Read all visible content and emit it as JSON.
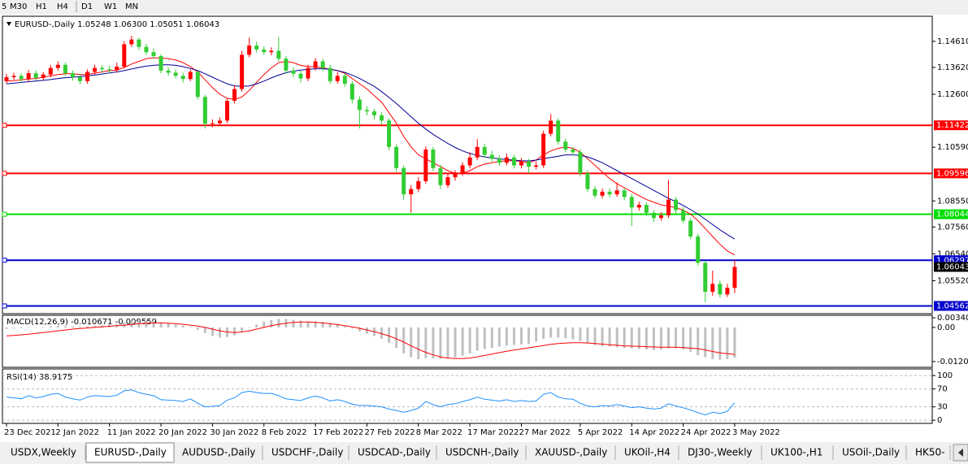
{
  "toolbar": [
    "5",
    "M30",
    "H1",
    "H4",
    "D1",
    "W1",
    "MN"
  ],
  "tabs": [
    "USDX,Weekly",
    "EURUSD-,Daily",
    "AUDUSD-,Daily",
    "USDCHF-,Daily",
    "USDCAD-,Daily",
    "USDCNH-,Daily",
    "XAUUSD-,Daily",
    "UKOil-,H4",
    "DJ30-,Weekly",
    "UK100-,H1",
    "USOil-,Daily",
    "HK50-"
  ],
  "chart_data": [
    {
      "type": "candlestick",
      "title": "EURUSD-,Daily  1.05248 1.06300 1.05051 1.06043",
      "categories": [
        "23 Dec 2021",
        null,
        null,
        null,
        null,
        null,
        null,
        "2 Jan 2022",
        null,
        null,
        null,
        null,
        null,
        null,
        "11 Jan 2022",
        null,
        null,
        null,
        null,
        null,
        null,
        "20 Jan 2022",
        null,
        null,
        null,
        null,
        null,
        null,
        "30 Jan 2022",
        null,
        null,
        null,
        null,
        null,
        null,
        "8 Feb 2022",
        null,
        null,
        null,
        null,
        null,
        null,
        "17 Feb 2022",
        null,
        null,
        null,
        null,
        null,
        null,
        "27 Feb 2022",
        null,
        null,
        null,
        null,
        null,
        null,
        "8 Mar 2022",
        null,
        null,
        null,
        null,
        null,
        null,
        "17 Mar 2022",
        null,
        null,
        null,
        null,
        null,
        null,
        "27 Mar 2022",
        null,
        null,
        null,
        null,
        null,
        null,
        null,
        "5 Apr 2022",
        null,
        null,
        null,
        null,
        null,
        null,
        "14 Apr 2022",
        null,
        null,
        null,
        null,
        null,
        null,
        "24 Apr 2022",
        null,
        null,
        null,
        null,
        null,
        null,
        "3 May 2022"
      ],
      "open": [
        1.131,
        1.1325,
        1.133,
        1.1318,
        1.134,
        1.1322,
        1.1335,
        1.136,
        1.1372,
        1.134,
        1.1325,
        1.131,
        1.1345,
        1.136,
        1.1355,
        1.1352,
        1.1365,
        1.145,
        1.1468,
        1.144,
        1.142,
        1.1405,
        1.135,
        1.1342,
        1.133,
        1.1318,
        1.1345,
        1.125,
        1.1148,
        1.115,
        1.116,
        1.1235,
        1.128,
        1.141,
        1.1445,
        1.143,
        1.142,
        1.1425,
        1.1395,
        1.135,
        1.1338,
        1.132,
        1.136,
        1.1385,
        1.136,
        1.131,
        1.133,
        1.13,
        1.124,
        1.12,
        1.1195,
        1.118,
        1.116,
        1.106,
        1.098,
        1.088,
        1.09,
        1.093,
        1.105,
        1.098,
        1.0915,
        1.0945,
        1.096,
        1.099,
        1.102,
        1.106,
        1.103,
        1.1015,
        1.1,
        1.102,
        1.099,
        1.1005,
        1.0985,
        1.099,
        1.111,
        1.116,
        1.108,
        1.105,
        1.104,
        1.096,
        1.09,
        1.0875,
        1.089,
        1.088,
        1.0895,
        1.087,
        1.083,
        1.084,
        1.081,
        1.079,
        1.08,
        1.086,
        1.082,
        1.078,
        1.072,
        1.062,
        1.051,
        1.054,
        1.05,
        1.05248
      ],
      "high": [
        1.1338,
        1.1342,
        1.134,
        1.1352,
        1.135,
        1.1345,
        1.1372,
        1.1385,
        1.138,
        1.135,
        1.1338,
        1.1355,
        1.1372,
        1.137,
        1.1368,
        1.138,
        1.1462,
        1.1482,
        1.1475,
        1.1452,
        1.1435,
        1.1412,
        1.1362,
        1.1355,
        1.1342,
        1.1355,
        1.135,
        1.1258,
        1.1165,
        1.1172,
        1.1245,
        1.1295,
        1.1425,
        1.1475,
        1.146,
        1.1442,
        1.1438,
        1.1478,
        1.1405,
        1.1362,
        1.135,
        1.1372,
        1.1398,
        1.1395,
        1.1372,
        1.1345,
        1.134,
        1.131,
        1.1252,
        1.1215,
        1.1205,
        1.1192,
        1.1168,
        1.107,
        1.099,
        1.0915,
        1.0945,
        1.1062,
        1.106,
        1.0992,
        1.0958,
        1.0972,
        1.1002,
        1.104,
        1.109,
        1.1072,
        1.1045,
        1.1028,
        1.1035,
        1.103,
        1.1018,
        1.1015,
        1.1005,
        1.1122,
        1.1185,
        1.1168,
        1.1092,
        1.106,
        1.1052,
        1.0972,
        1.0912,
        1.0902,
        1.0902,
        1.0925,
        1.0905,
        1.0882,
        1.0852,
        1.085,
        1.082,
        1.0812,
        1.0935,
        1.087,
        1.0832,
        1.079,
        1.073,
        1.0628,
        1.059,
        1.0552,
        1.054,
        1.063
      ],
      "low": [
        1.13,
        1.1315,
        1.1305,
        1.1308,
        1.1312,
        1.1312,
        1.1325,
        1.135,
        1.133,
        1.1312,
        1.1298,
        1.13,
        1.1335,
        1.1342,
        1.134,
        1.1342,
        1.1358,
        1.144,
        1.1428,
        1.141,
        1.1395,
        1.134,
        1.133,
        1.132,
        1.1305,
        1.131,
        1.124,
        1.113,
        1.1135,
        1.114,
        1.115,
        1.1225,
        1.127,
        1.14,
        1.1418,
        1.141,
        1.1408,
        1.1385,
        1.1338,
        1.1325,
        1.1305,
        1.131,
        1.135,
        1.1348,
        1.13,
        1.13,
        1.1288,
        1.1225,
        1.113,
        1.118,
        1.1165,
        1.1145,
        1.1048,
        1.0965,
        1.086,
        1.081,
        1.0888,
        1.092,
        1.0968,
        1.09,
        1.0905,
        1.0932,
        1.095,
        1.0978,
        1.101,
        1.102,
        1.1005,
        1.0988,
        1.099,
        1.0978,
        1.0978,
        1.096,
        1.0975,
        1.098,
        1.11,
        1.1068,
        1.104,
        1.1028,
        1.0948,
        1.0888,
        1.0865,
        1.0865,
        1.0868,
        1.087,
        1.0858,
        1.076,
        1.0818,
        1.0798,
        1.0775,
        1.078,
        1.079,
        1.0808,
        1.077,
        1.071,
        1.061,
        1.047,
        1.0495,
        1.0488,
        1.049,
        1.05051
      ],
      "close": [
        1.1325,
        1.133,
        1.1318,
        1.134,
        1.1322,
        1.1335,
        1.136,
        1.1372,
        1.134,
        1.1325,
        1.131,
        1.1345,
        1.136,
        1.1355,
        1.1352,
        1.1365,
        1.145,
        1.1468,
        1.144,
        1.142,
        1.1405,
        1.135,
        1.1342,
        1.133,
        1.1318,
        1.1345,
        1.125,
        1.1148,
        1.115,
        1.116,
        1.1235,
        1.128,
        1.141,
        1.1445,
        1.143,
        1.142,
        1.1425,
        1.1395,
        1.135,
        1.1338,
        1.132,
        1.136,
        1.1385,
        1.136,
        1.131,
        1.133,
        1.13,
        1.124,
        1.12,
        1.1195,
        1.118,
        1.116,
        1.106,
        1.098,
        1.088,
        1.09,
        1.093,
        1.105,
        1.098,
        1.0915,
        1.0945,
        1.096,
        1.099,
        1.102,
        1.106,
        1.103,
        1.1015,
        1.1,
        1.102,
        1.099,
        1.1005,
        1.0985,
        1.099,
        1.111,
        1.116,
        1.108,
        1.105,
        1.104,
        1.096,
        1.09,
        1.0875,
        1.089,
        1.088,
        1.0895,
        1.087,
        1.083,
        1.084,
        1.081,
        1.079,
        1.08,
        1.086,
        1.082,
        1.078,
        1.072,
        1.062,
        1.051,
        1.054,
        1.05,
        1.05248,
        1.06043
      ],
      "up_color": "#ff0000",
      "down_color": "#32cd32",
      "series": [
        {
          "color": "#ff0000",
          "values": [
            1.131,
            1.1312,
            1.1315,
            1.1318,
            1.132,
            1.1325,
            1.133,
            1.1335,
            1.1338,
            1.1338,
            1.1335,
            1.1335,
            1.134,
            1.1345,
            1.135,
            1.1352,
            1.1362,
            1.1375,
            1.1385,
            1.1395,
            1.1398,
            1.1398,
            1.1395,
            1.139,
            1.138,
            1.1365,
            1.1345,
            1.1315,
            1.1285,
            1.126,
            1.1245,
            1.124,
            1.125,
            1.1275,
            1.1305,
            1.1335,
            1.136,
            1.138,
            1.1385,
            1.138,
            1.137,
            1.1365,
            1.1365,
            1.136,
            1.1355,
            1.135,
            1.134,
            1.132,
            1.13,
            1.128,
            1.1255,
            1.123,
            1.119,
            1.115,
            1.11,
            1.106,
            1.103,
            1.1015,
            1.1,
            1.0985,
            1.097,
            1.096,
            1.096,
            1.097,
            1.0985,
            1.0995,
            1.1,
            1.1005,
            1.1008,
            1.1008,
            1.1005,
            1.1,
            1.101,
            1.103,
            1.1045,
            1.1055,
            1.106,
            1.1055,
            1.104,
            1.1015,
            1.099,
            1.0965,
            1.094,
            1.092,
            1.0905,
            1.089,
            1.0875,
            1.086,
            1.085,
            1.084,
            1.0835,
            1.083,
            1.082,
            1.0805,
            1.078,
            1.075,
            1.072,
            1.069,
            1.0665,
            1.065
          ]
        },
        {
          "color": "#000099",
          "values": [
            1.13,
            1.1302,
            1.1305,
            1.1308,
            1.131,
            1.1313,
            1.1316,
            1.132,
            1.1323,
            1.1325,
            1.1327,
            1.133,
            1.1333,
            1.1337,
            1.1341,
            1.1345,
            1.135,
            1.1356,
            1.1362,
            1.1367,
            1.137,
            1.1372,
            1.1372,
            1.137,
            1.1365,
            1.1358,
            1.135,
            1.1338,
            1.1325,
            1.1312,
            1.13,
            1.1292,
            1.129,
            1.1292,
            1.13,
            1.131,
            1.1322,
            1.1333,
            1.1342,
            1.1348,
            1.1352,
            1.1355,
            1.1357,
            1.1357,
            1.1355,
            1.135,
            1.1343,
            1.1333,
            1.132,
            1.1305,
            1.129,
            1.127,
            1.1248,
            1.1225,
            1.12,
            1.1175,
            1.115,
            1.1128,
            1.1108,
            1.109,
            1.1073,
            1.1058,
            1.1045,
            1.1035,
            1.1028,
            1.1022,
            1.1018,
            1.1015,
            1.1012,
            1.101,
            1.1008,
            1.1007,
            1.101,
            1.1015,
            1.102,
            1.1025,
            1.103,
            1.103,
            1.1028,
            1.1022,
            1.1012,
            1.1,
            1.0985,
            1.097,
            1.0955,
            1.094,
            1.0925,
            1.091,
            1.0895,
            1.088,
            1.0865,
            1.0852,
            1.0838,
            1.0822,
            1.0805,
            1.0785,
            1.0765,
            1.0745,
            1.0727,
            1.071
          ]
        }
      ],
      "levels": [
        {
          "value": 1.11422,
          "color": "#ff0000"
        },
        {
          "value": 1.09596,
          "color": "#ff0000"
        },
        {
          "value": 1.08044,
          "color": "#00dd00"
        },
        {
          "value": 1.06297,
          "color": "#0000cc"
        },
        {
          "value": 1.04562,
          "color": "#0000cc"
        }
      ],
      "ylim": [
        1.0433,
        1.1544
      ],
      "yticks": [
        {
          "value": 1.1461,
          "label": "1.14610"
        },
        {
          "value": 1.1362,
          "label": "1.13620"
        },
        {
          "value": 1.126,
          "label": "1.12600"
        },
        {
          "value": 1.1059,
          "label": "1.10590"
        },
        {
          "value": 1.0855,
          "label": "1.08550"
        },
        {
          "value": 1.0756,
          "label": "1.07560"
        },
        {
          "value": 1.0654,
          "label": "1.06540"
        },
        {
          "value": 1.0552,
          "label": "1.05520"
        }
      ]
    },
    {
      "type": "macd",
      "title": "MACD(12,26,9) -0.010671 -0.009559",
      "histogram": {
        "color": "#c0c0c0",
        "values": [
          -0.0005,
          -0.0004,
          -0.0003,
          -0.0002,
          0.0,
          0.0002,
          0.0004,
          0.0006,
          0.0005,
          0.0004,
          0.0003,
          0.0004,
          0.0006,
          0.0008,
          0.001,
          0.0012,
          0.0018,
          0.0024,
          0.0026,
          0.0025,
          0.0022,
          0.0018,
          0.0014,
          0.001,
          0.0006,
          0.0002,
          -0.0008,
          -0.002,
          -0.003,
          -0.0036,
          -0.0034,
          -0.0028,
          -0.0015,
          -0.0002,
          0.001,
          0.002,
          0.0026,
          0.003,
          0.003,
          0.0027,
          0.0024,
          0.0022,
          0.0022,
          0.002,
          0.0016,
          0.0012,
          0.0006,
          -0.0004,
          -0.0014,
          -0.0022,
          -0.003,
          -0.004,
          -0.0055,
          -0.0072,
          -0.0092,
          -0.0105,
          -0.0112,
          -0.0108,
          -0.011,
          -0.0112,
          -0.011,
          -0.0106,
          -0.01,
          -0.0092,
          -0.0082,
          -0.0076,
          -0.0072,
          -0.0068,
          -0.0064,
          -0.0062,
          -0.006,
          -0.0058,
          -0.005,
          -0.004,
          -0.0036,
          -0.0036,
          -0.0038,
          -0.0042,
          -0.0048,
          -0.0055,
          -0.0062,
          -0.0066,
          -0.0068,
          -0.007,
          -0.0072,
          -0.0074,
          -0.0076,
          -0.0078,
          -0.008,
          -0.0078,
          -0.0074,
          -0.0074,
          -0.0078,
          -0.0086,
          -0.0098,
          -0.0105,
          -0.0112,
          -0.0114,
          -0.0112,
          -0.010671
        ]
      },
      "signal": {
        "color": "#ff0000",
        "values": [
          -0.003,
          -0.0028,
          -0.0026,
          -0.0024,
          -0.0021,
          -0.0018,
          -0.0015,
          -0.0012,
          -0.0009,
          -0.0006,
          -0.0004,
          -0.0002,
          0.0,
          0.0002,
          0.0004,
          0.0006,
          0.0008,
          0.001,
          0.0013,
          0.0015,
          0.0016,
          0.0016,
          0.0015,
          0.0013,
          0.0011,
          0.0008,
          0.0005,
          0.0,
          -0.0006,
          -0.0012,
          -0.0016,
          -0.0018,
          -0.0016,
          -0.0012,
          -0.0006,
          0.0,
          0.0006,
          0.0011,
          0.0015,
          0.0018,
          0.0019,
          0.0019,
          0.0018,
          0.0016,
          0.0013,
          0.001,
          0.0006,
          0.0002,
          -0.0003,
          -0.0009,
          -0.0015,
          -0.0022,
          -0.003,
          -0.004,
          -0.0052,
          -0.0065,
          -0.0077,
          -0.0088,
          -0.0097,
          -0.0104,
          -0.0108,
          -0.011,
          -0.011,
          -0.0108,
          -0.0104,
          -0.0099,
          -0.0094,
          -0.0089,
          -0.0084,
          -0.008,
          -0.0076,
          -0.0072,
          -0.0068,
          -0.0064,
          -0.006,
          -0.0057,
          -0.0055,
          -0.0054,
          -0.0054,
          -0.0055,
          -0.0057,
          -0.0059,
          -0.0061,
          -0.0063,
          -0.0065,
          -0.0066,
          -0.0067,
          -0.0068,
          -0.0069,
          -0.007,
          -0.007,
          -0.007,
          -0.0071,
          -0.0073,
          -0.0075,
          -0.008,
          -0.0085,
          -0.009,
          -0.0093,
          -0.009559
        ]
      },
      "ylim": [
        -0.0138,
        0.004
      ],
      "yticks": [
        0.003408,
        {
          "value": 0,
          "label": "0.00"
        },
        -0.01205
      ]
    },
    {
      "type": "line",
      "title": "RSI(14) 38.9175",
      "grid": true,
      "series": [
        {
          "color": "#1e90ff",
          "values": [
            52,
            50,
            48,
            55,
            50,
            53,
            58,
            60,
            52,
            48,
            45,
            52,
            55,
            54,
            53,
            56,
            66,
            68,
            62,
            58,
            55,
            46,
            45,
            44,
            42,
            48,
            38,
            30,
            31,
            33,
            45,
            50,
            62,
            65,
            62,
            60,
            60,
            55,
            48,
            46,
            44,
            50,
            54,
            50,
            43,
            46,
            42,
            36,
            33,
            33,
            32,
            30,
            25,
            22,
            18,
            22,
            27,
            42,
            35,
            30,
            35,
            37,
            42,
            46,
            52,
            47,
            45,
            43,
            46,
            42,
            44,
            42,
            43,
            58,
            62,
            52,
            48,
            47,
            38,
            32,
            30,
            33,
            32,
            35,
            32,
            28,
            30,
            27,
            25,
            27,
            37,
            32,
            28,
            23,
            17,
            12,
            18,
            15,
            20,
            38.9175
          ]
        }
      ],
      "ylim": [
        -7,
        113
      ],
      "yticks": [
        100,
        70,
        30,
        0
      ]
    }
  ]
}
